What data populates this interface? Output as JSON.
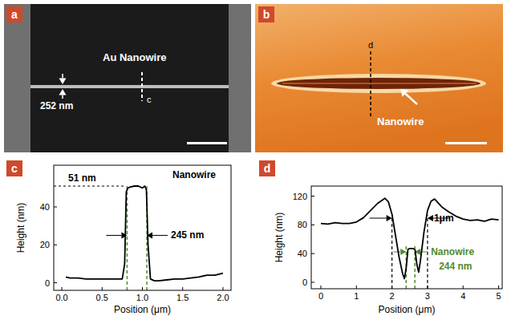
{
  "panels": [
    {
      "label": "a",
      "title": "Au Nanowire",
      "width_label": "252 nm",
      "section_label": "c"
    },
    {
      "label": "b",
      "title": "Nanowire",
      "section_label": "d"
    }
  ],
  "chart_data": [
    {
      "panel": "c",
      "type": "line",
      "x_label": "Position (μm)",
      "y_label": "Height (nm)",
      "color": "#000000",
      "x": [
        0.05,
        0.1,
        0.2,
        0.3,
        0.4,
        0.5,
        0.6,
        0.7,
        0.75,
        0.78,
        0.8,
        0.82,
        0.85,
        0.9,
        0.95,
        1.0,
        1.03,
        1.05,
        1.07,
        1.1,
        1.15,
        1.2,
        1.3,
        1.4,
        1.5,
        1.6,
        1.7,
        1.8,
        1.9,
        2.0
      ],
      "values": [
        3,
        2.5,
        2.5,
        2,
        2,
        2,
        2,
        2,
        2,
        10,
        48,
        50,
        50.5,
        51,
        51,
        50,
        51,
        49,
        20,
        2,
        1,
        1,
        1.5,
        2,
        2,
        2.5,
        3,
        4,
        4,
        5
      ],
      "xlim": [
        -0.1,
        2.1
      ],
      "xticks": [
        {
          "value": 0,
          "label": "0.0"
        },
        0.5,
        {
          "value": 1,
          "label": "1.0"
        },
        1.5,
        {
          "value": 2,
          "label": "2.0"
        }
      ],
      "ylim": [
        -4,
        62
      ],
      "yticks": [
        0,
        20,
        40
      ],
      "annotations": [
        {
          "text": "Nanowire"
        },
        {
          "text": "51 nm",
          "value": 51
        },
        {
          "text": "245 nm",
          "start": 0.81,
          "end": 1.055
        }
      ]
    },
    {
      "panel": "d",
      "type": "line",
      "x_label": "Position (μm)",
      "y_label": "Height (nm)",
      "color": "#000000",
      "x": [
        0,
        0.2,
        0.4,
        0.6,
        0.8,
        1.0,
        1.2,
        1.4,
        1.6,
        1.8,
        1.9,
        2.0,
        2.1,
        2.2,
        2.3,
        2.35,
        2.4,
        2.45,
        2.5,
        2.6,
        2.65,
        2.7,
        2.75,
        2.8,
        2.9,
        3.0,
        3.1,
        3.2,
        3.4,
        3.6,
        3.8,
        4.0,
        4.2,
        4.4,
        4.6,
        4.8,
        5.0
      ],
      "values": [
        82,
        81,
        83,
        82,
        82,
        84,
        90,
        100,
        110,
        117,
        112,
        95,
        65,
        35,
        12,
        5,
        20,
        46,
        47,
        47,
        45,
        25,
        14,
        30,
        70,
        100,
        113,
        116,
        105,
        98,
        92,
        88,
        86,
        87,
        85,
        88,
        87
      ],
      "xlim": [
        -0.27,
        5.1
      ],
      "xticks": [
        0,
        1,
        2,
        3,
        4,
        5
      ],
      "ylim": [
        -9,
        134
      ],
      "yticks": [
        0,
        40,
        80,
        120
      ],
      "annotations": [
        {
          "text": "1μm",
          "start": 2.0,
          "end": 3.0
        },
        {
          "text": "Nanowire",
          "subtext": "244 nm",
          "start": 2.4,
          "end": 2.644
        }
      ]
    }
  ]
}
